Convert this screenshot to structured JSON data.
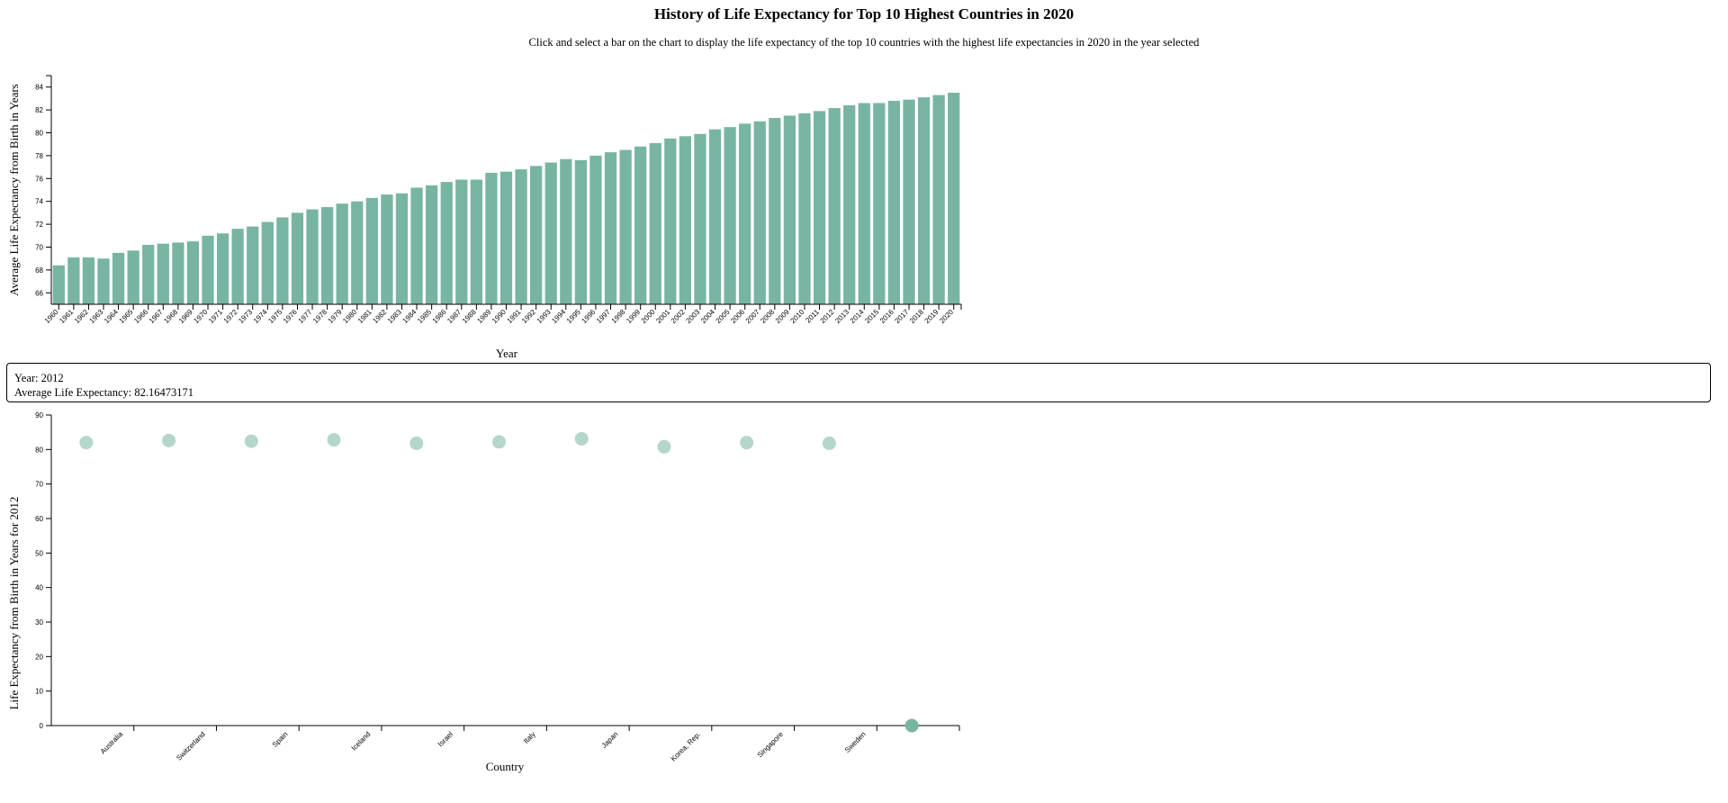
{
  "title": "History of Life Expectancy for Top 10 Highest Countries in 2020",
  "subtitle": "Click and select a bar on the chart to display the life expectancy of the top 10 countries with the highest life expectancies in 2020 in the year selected",
  "info": {
    "year_line": "Year: 2012",
    "avg_line": "Average Life Expectancy: 82.16473171"
  },
  "colors": {
    "bar": "#77b5a2",
    "axis": "#000000"
  },
  "chart_data": [
    {
      "type": "bar",
      "title": "History of Life Expectancy for Top 10 Highest Countries in 2020",
      "xlabel": "Year",
      "ylabel": "Average Life Expectancy from Birth in Years",
      "ylim": [
        65,
        85
      ],
      "yticks": [
        66,
        68,
        70,
        72,
        74,
        76,
        78,
        80,
        82,
        84
      ],
      "categories": [
        "1960",
        "1961",
        "1962",
        "1963",
        "1964",
        "1965",
        "1966",
        "1967",
        "1968",
        "1969",
        "1970",
        "1971",
        "1972",
        "1973",
        "1974",
        "1975",
        "1976",
        "1977",
        "1978",
        "1979",
        "1980",
        "1981",
        "1982",
        "1983",
        "1984",
        "1985",
        "1986",
        "1987",
        "1988",
        "1989",
        "1990",
        "1991",
        "1992",
        "1993",
        "1994",
        "1995",
        "1996",
        "1997",
        "1998",
        "1999",
        "2000",
        "2001",
        "2002",
        "2003",
        "2004",
        "2005",
        "2006",
        "2007",
        "2008",
        "2009",
        "2010",
        "2011",
        "2012",
        "2013",
        "2014",
        "2015",
        "2016",
        "2017",
        "2018",
        "2019",
        "2020"
      ],
      "values": [
        68.4,
        69.1,
        69.1,
        69.0,
        69.5,
        69.7,
        70.2,
        70.3,
        70.4,
        70.5,
        71.0,
        71.2,
        71.6,
        71.8,
        72.2,
        72.6,
        73.0,
        73.3,
        73.5,
        73.8,
        74.0,
        74.3,
        74.6,
        74.7,
        75.2,
        75.4,
        75.7,
        75.9,
        75.9,
        76.5,
        76.6,
        76.8,
        77.1,
        77.4,
        77.7,
        77.6,
        78.0,
        78.3,
        78.5,
        78.8,
        79.1,
        79.5,
        79.7,
        79.9,
        80.3,
        80.5,
        80.8,
        81.0,
        81.3,
        81.5,
        81.7,
        81.9,
        82.16,
        82.4,
        82.6,
        82.6,
        82.8,
        82.9,
        83.1,
        83.3,
        83.5
      ],
      "grid": false
    },
    {
      "type": "scatter",
      "xlabel": "Country",
      "ylabel": "Life Expectancy from Birth in Years for 2012",
      "ylim": [
        0,
        90
      ],
      "yticks": [
        0,
        10,
        20,
        30,
        40,
        50,
        60,
        70,
        80,
        90
      ],
      "categories": [
        "Australia",
        "Switzerland",
        "Spain",
        "Iceland",
        "Israel",
        "Italy",
        "Japan",
        "Korea, Rep.",
        "Singapore",
        "Sweden",
        ""
      ],
      "values": [
        82.0,
        82.6,
        82.4,
        82.8,
        81.8,
        82.2,
        83.1,
        80.8,
        82.0,
        81.8,
        0
      ],
      "grid": false
    }
  ]
}
